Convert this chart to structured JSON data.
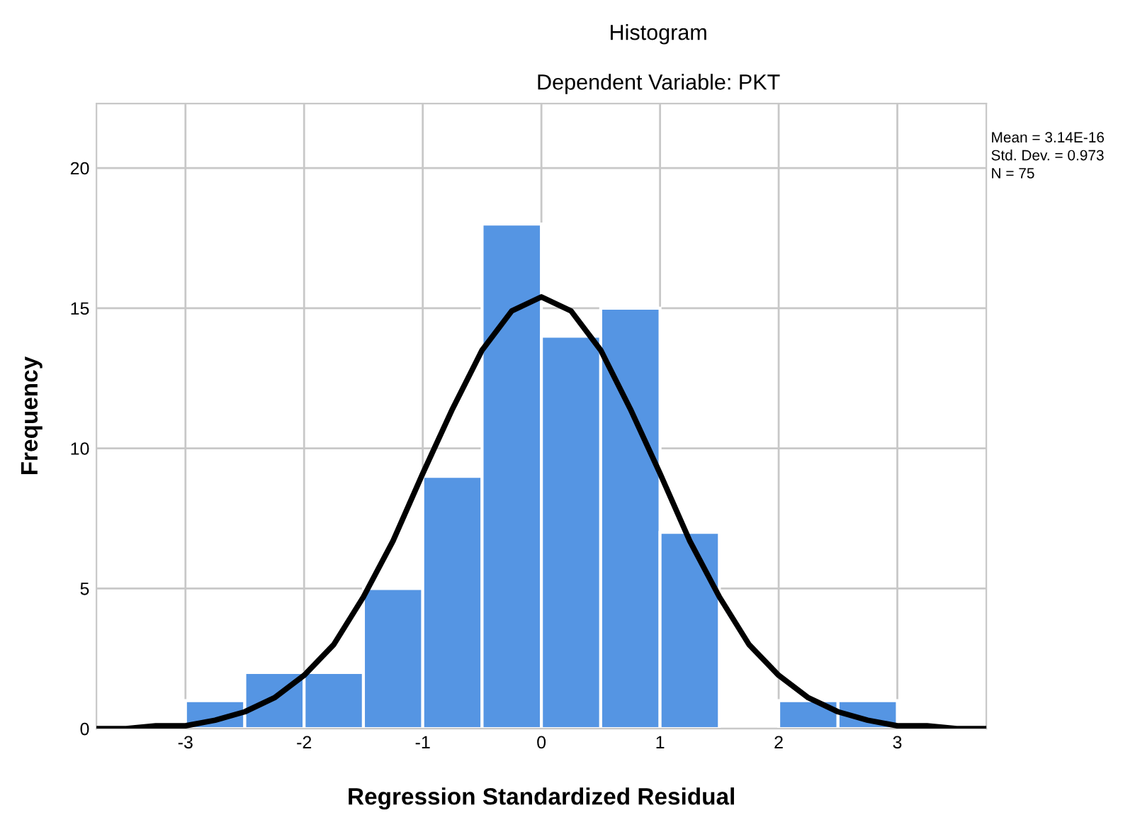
{
  "chart_data": {
    "type": "histogram",
    "title": "Histogram",
    "subtitle": "Dependent Variable: PKT",
    "xlabel": "Regression Standardized Residual",
    "ylabel": "Frequency",
    "bins": [
      -3,
      -2.5,
      -2,
      -1.5,
      -1,
      -0.5,
      0,
      0.5,
      1,
      1.5,
      2,
      2.5,
      3
    ],
    "values": [
      1,
      2,
      2,
      5,
      9,
      18,
      14,
      15,
      7,
      0,
      1,
      1
    ],
    "color": "#5595e3",
    "series": [
      {
        "type": "line",
        "color": "#000000",
        "x": [
          -3.75,
          -3.5,
          -3.25,
          -3,
          -2.75,
          -2.5,
          -2.25,
          -2,
          -1.75,
          -1.5,
          -1.25,
          -1,
          -0.75,
          -0.5,
          -0.25,
          0,
          0.25,
          0.5,
          0.75,
          1,
          1.25,
          1.5,
          1.75,
          2,
          2.25,
          2.5,
          2.75,
          3,
          3.25,
          3.5,
          3.75
        ],
        "values": [
          0,
          0,
          0.1,
          0.1,
          0.3,
          0.6,
          1.1,
          1.9,
          3.0,
          4.7,
          6.7,
          9.1,
          11.4,
          13.5,
          14.9,
          15.4,
          14.9,
          13.5,
          11.4,
          9.1,
          6.7,
          4.7,
          3.0,
          1.9,
          1.1,
          0.6,
          0.3,
          0.1,
          0.1,
          0,
          0
        ]
      }
    ],
    "xlim": [
      -3.75,
      3.75
    ],
    "ylim": [
      0,
      22.3
    ],
    "xticks": [
      -3,
      -2,
      -1,
      0,
      1,
      2,
      3
    ],
    "yticks": [
      0,
      5,
      10,
      15,
      20
    ],
    "grid": true,
    "annotations": [
      "Mean = 3.14E-16",
      "Std. Dev. = 0.973",
      "N = 75"
    ]
  }
}
